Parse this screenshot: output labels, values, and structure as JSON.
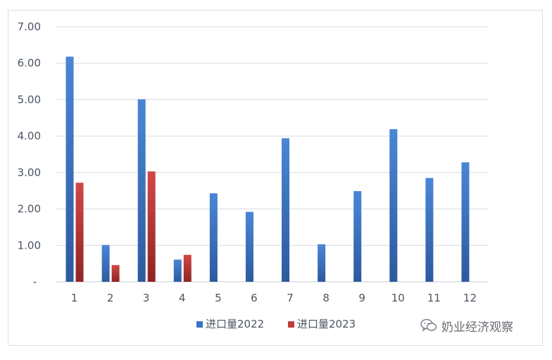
{
  "chart_data": {
    "type": "bar",
    "categories": [
      "1",
      "2",
      "3",
      "4",
      "5",
      "6",
      "7",
      "8",
      "9",
      "10",
      "11",
      "12"
    ],
    "series": [
      {
        "name": "进口量2022",
        "color": "#3a73c4",
        "values": [
          6.18,
          1.01,
          5.01,
          0.61,
          2.43,
          1.92,
          3.94,
          1.03,
          2.49,
          4.19,
          2.85,
          3.28
        ]
      },
      {
        "name": "进口量2023",
        "color": "#c33a3a",
        "values": [
          2.72,
          0.46,
          3.03,
          0.74,
          null,
          null,
          null,
          null,
          null,
          null,
          null,
          null
        ]
      }
    ],
    "ylim": [
      0,
      7
    ],
    "yticks": [
      "-",
      "1.00",
      "2.00",
      "3.00",
      "4.00",
      "5.00",
      "6.00",
      "7.00"
    ],
    "grid": true,
    "legend_position": "bottom"
  },
  "watermark": {
    "text": "奶业经济观察",
    "icon": "wechat-icon"
  }
}
